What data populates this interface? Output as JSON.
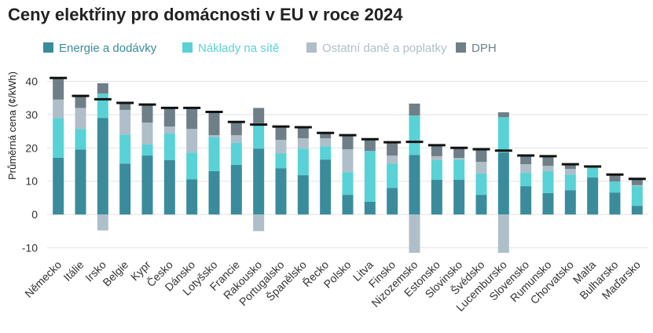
{
  "chart_data": {
    "type": "bar",
    "stacked": true,
    "title": "Ceny elektřiny pro domácnosti v EU v roce 2024",
    "y_label": "Průměrná cena (¢/kWh)",
    "categories": [
      "Německo",
      "Itálie",
      "Irsko",
      "Belgie",
      "Kypr",
      "Česko",
      "Dánsko",
      "Lotyšsko",
      "Francie",
      "Rakousko",
      "Portugalsko",
      "Španělsko",
      "Řecko",
      "Polsko",
      "Litva",
      "Finsko",
      "Nizozemsko",
      "Estonsko",
      "Slovinsko",
      "Švédsko",
      "Lucembursko",
      "Slovensko",
      "Rumunsko",
      "Chorvatsko",
      "Malta",
      "Bulharsko",
      "Maďarsko"
    ],
    "series": [
      {
        "name": "Energie a dodávky",
        "color": "#3a8c9c",
        "values": [
          17,
          19.5,
          29,
          15.3,
          17.7,
          16.3,
          10.6,
          13,
          14.9,
          19.8,
          13.9,
          11.8,
          16.5,
          5.9,
          3.8,
          8,
          17.9,
          10.4,
          10.4,
          5.9,
          18.6,
          8.5,
          6.4,
          7.3,
          11.1,
          6.6,
          2.6
        ]
      },
      {
        "name": "Náklady na sítě",
        "color": "#58d2d6",
        "values": [
          12,
          6.2,
          7.3,
          8.7,
          3.3,
          8,
          8,
          10.3,
          6.6,
          7.6,
          4.5,
          8,
          4,
          6.8,
          15.3,
          7.3,
          11.8,
          5.9,
          6.1,
          6.4,
          10.6,
          4,
          6.6,
          4.7,
          3.3,
          3.3,
          5.9
        ]
      },
      {
        "name": "Ostatní daně a poplatky",
        "color": "#aebfc9",
        "values": [
          5.5,
          6.3,
          -4.8,
          7.4,
          6.6,
          2.1,
          7.1,
          0.5,
          2.3,
          -5,
          4,
          3.1,
          2.4,
          6.9,
          0,
          2.4,
          -11.5,
          1.2,
          0.5,
          3.5,
          -11.5,
          2.6,
          1.6,
          1.7,
          0,
          0,
          0.3
        ]
      },
      {
        "name": "DPH",
        "color": "#6f7f88",
        "values": [
          6.5,
          3.6,
          3.1,
          2.1,
          5.4,
          5.6,
          6.3,
          7,
          4,
          4.6,
          4,
          3.3,
          1.6,
          4.2,
          3.5,
          4,
          3.6,
          3.3,
          3,
          3.8,
          1.5,
          2.6,
          2.9,
          1.4,
          0,
          2.1,
          1.9
        ]
      }
    ],
    "total_color": "#111111",
    "ylim": [
      -12,
      42
    ],
    "yticks": [
      -10,
      0,
      10,
      20,
      30,
      40
    ],
    "grid": true
  }
}
